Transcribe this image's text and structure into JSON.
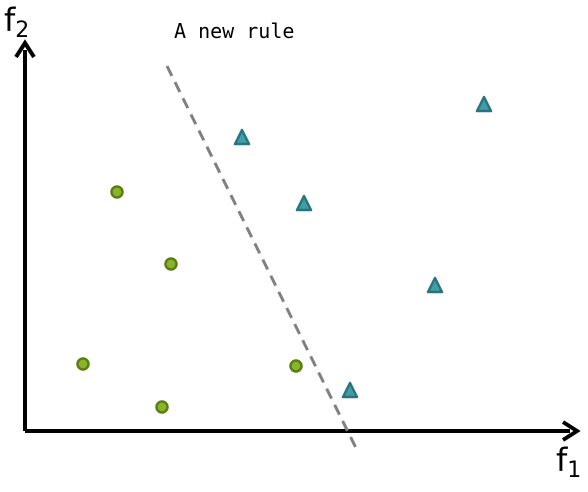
{
  "title": "A new rule",
  "x_axis": {
    "letter": "f",
    "subscript": "1"
  },
  "y_axis": {
    "letter": "f",
    "subscript": "2"
  },
  "colors": {
    "axis": "#000000",
    "circle_fill": "#8ab52a",
    "circle_stroke": "#5a7f10",
    "triangle_fill": "#3f9ea6",
    "triangle_stroke": "#2a7480",
    "rule_line": "#808080"
  },
  "marker_types": {
    "class_a": "circle",
    "class_b": "triangle"
  }
}
